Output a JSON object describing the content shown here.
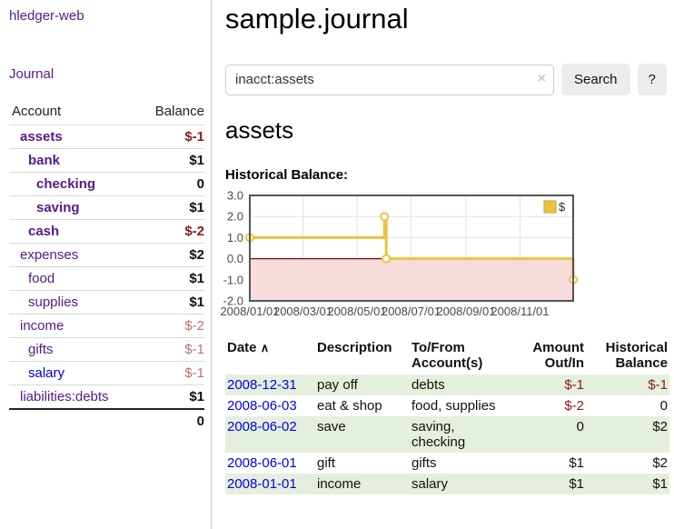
{
  "sidebar": {
    "brand": "hledger-web",
    "nav": [
      {
        "label": "Journal"
      }
    ],
    "accounts_table": {
      "headers": {
        "account": "Account",
        "balance": "Balance"
      },
      "rows": [
        {
          "name": "assets",
          "balance": "$-1",
          "depth": 1,
          "bold": true,
          "balance_style": "neg-strong",
          "link_style": "visited"
        },
        {
          "name": "bank",
          "balance": "$1",
          "depth": 2,
          "bold": true,
          "balance_style": "pos",
          "link_style": "visited"
        },
        {
          "name": "checking",
          "balance": "0",
          "depth": 3,
          "bold": true,
          "balance_style": "pos",
          "link_style": "visited"
        },
        {
          "name": "saving",
          "balance": "$1",
          "depth": 3,
          "bold": true,
          "balance_style": "pos",
          "link_style": "visited"
        },
        {
          "name": "cash",
          "balance": "$-2",
          "depth": 2,
          "bold": true,
          "balance_style": "neg-strong",
          "link_style": "visited"
        },
        {
          "name": "expenses",
          "balance": "$2",
          "depth": 1,
          "bold": false,
          "balance_style": "pos",
          "link_style": "visited"
        },
        {
          "name": "food",
          "balance": "$1",
          "depth": 2,
          "bold": false,
          "balance_style": "pos",
          "link_style": "visited"
        },
        {
          "name": "supplies",
          "balance": "$1",
          "depth": 2,
          "bold": false,
          "balance_style": "pos",
          "link_style": "visited"
        },
        {
          "name": "income",
          "balance": "$-2",
          "depth": 1,
          "bold": false,
          "balance_style": "neg-soft",
          "link_style": "visited"
        },
        {
          "name": "gifts",
          "balance": "$-1",
          "depth": 2,
          "bold": false,
          "balance_style": "neg-soft",
          "link_style": "visited"
        },
        {
          "name": "salary",
          "balance": "$-1",
          "depth": 2,
          "bold": false,
          "balance_style": "neg-soft",
          "link_style": "unvisited"
        },
        {
          "name": "liabilities:debts",
          "balance": "$1",
          "depth": 1,
          "bold": false,
          "balance_style": "pos",
          "link_style": "visited"
        }
      ],
      "total": "0"
    }
  },
  "header": {
    "title": "sample.journal"
  },
  "search": {
    "value": "inacct:assets",
    "clear_icon": "×",
    "button_label": "Search",
    "help_label": "?"
  },
  "account_page": {
    "title": "assets",
    "chart_label": "Historical Balance:"
  },
  "chart_data": {
    "type": "line",
    "step": true,
    "title": "Historical Balance:",
    "series": [
      {
        "name": "$",
        "color": "#edc240",
        "points": [
          [
            "2008-01-01",
            1
          ],
          [
            "2008-06-01",
            2
          ],
          [
            "2008-06-03",
            0
          ],
          [
            "2008-12-31",
            -1
          ]
        ]
      }
    ],
    "x_ticks": [
      "2008/01/01",
      "2008/03/01",
      "2008/05/01",
      "2008/07/01",
      "2008/09/01",
      "2008/11/01"
    ],
    "y_ticks": [
      "3.0",
      "2.0",
      "1.0",
      "0.0",
      "-1.0",
      "-2.0"
    ],
    "xlim": [
      "2008-01-01",
      "2008-12-31"
    ],
    "ylim": [
      -2,
      3
    ],
    "legend_position": "top-right",
    "grid": true,
    "colors": {
      "negative_region": "#f8dcdc",
      "zero_line": "#8b0000",
      "grid_line": "#e2e2e2",
      "border": "#545454",
      "tick_text": "#4a4a4a",
      "marker_fill": "#ffffff"
    }
  },
  "register_table": {
    "headers": {
      "date": "Date",
      "sort_icon": "∧",
      "description": "Description",
      "accounts": "To/From\nAccount(s)",
      "amount": "Amount\nOut/In",
      "balance": "Historical\nBalance"
    },
    "rows": [
      {
        "date": "2008-12-31",
        "description": "pay off",
        "accounts": "debts",
        "amount": "$-1",
        "balance": "$-1"
      },
      {
        "date": "2008-06-03",
        "description": "eat & shop",
        "accounts": "food, supplies",
        "amount": "$-2",
        "balance": "0"
      },
      {
        "date": "2008-06-02",
        "description": "save",
        "accounts": "saving,\nchecking",
        "amount": "0",
        "balance": "$2"
      },
      {
        "date": "2008-06-01",
        "description": "gift",
        "accounts": "gifts",
        "amount": "$1",
        "balance": "$2"
      },
      {
        "date": "2008-01-01",
        "description": "income",
        "accounts": "salary",
        "amount": "$1",
        "balance": "$1"
      }
    ]
  }
}
